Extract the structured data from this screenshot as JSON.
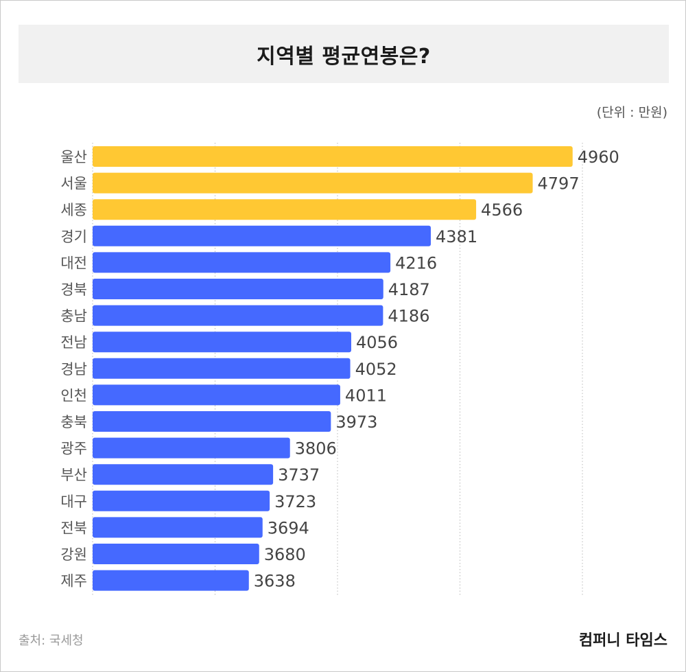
{
  "title": "지역별 평균연봉은?",
  "unit_note": "(단위 : 만원)",
  "source": "출처: 국세청",
  "brand": "컴퍼니 타임스",
  "colors": {
    "highlight": "#FFC833",
    "base": "#4569FF",
    "grid": "#b8b8b8"
  },
  "chart_data": {
    "type": "bar",
    "orientation": "horizontal",
    "title": "지역별 평균연봉은?",
    "xlabel": "",
    "ylabel": "",
    "grid": true,
    "xlim": [
      3000,
      5000
    ],
    "categories": [
      "울산",
      "서울",
      "세종",
      "경기",
      "대전",
      "경북",
      "충남",
      "전남",
      "경남",
      "인천",
      "충북",
      "광주",
      "부산",
      "대구",
      "전북",
      "강원",
      "제주"
    ],
    "values": [
      4960,
      4797,
      4566,
      4381,
      4216,
      4187,
      4186,
      4056,
      4052,
      4011,
      3973,
      3806,
      3737,
      3723,
      3694,
      3680,
      3638
    ],
    "highlighted": [
      "울산",
      "서울",
      "세종"
    ]
  }
}
